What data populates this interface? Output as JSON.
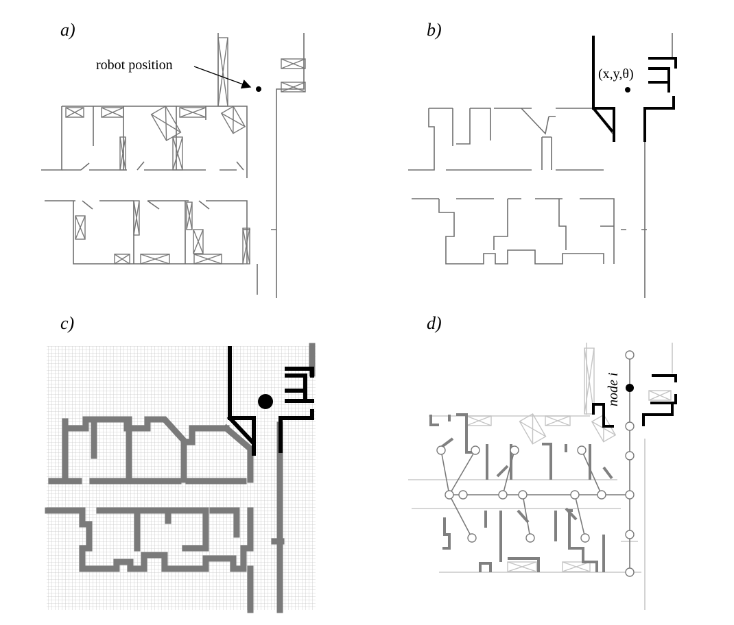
{
  "panels": {
    "a": {
      "label": "a)",
      "annotation": "robot position"
    },
    "b": {
      "label": "b)",
      "annotation": "(x,y,θ)"
    },
    "c": {
      "label": "c)"
    },
    "d": {
      "label": "d)",
      "annotation": "node i"
    }
  }
}
